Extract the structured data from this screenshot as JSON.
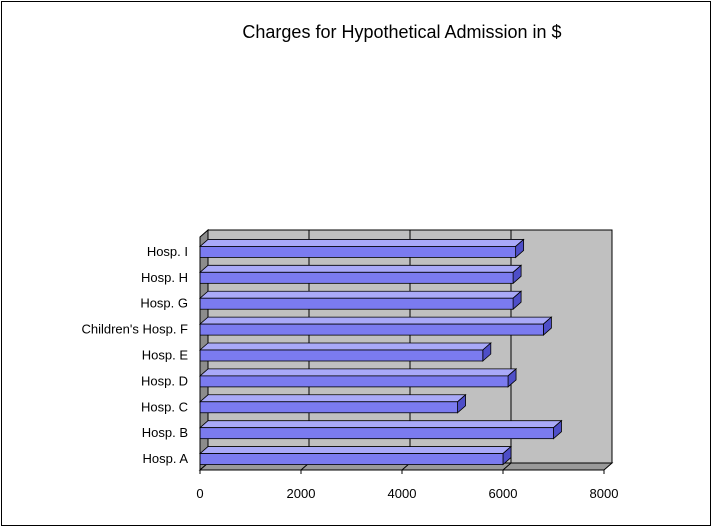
{
  "chart_data": {
    "type": "bar",
    "orientation": "horizontal",
    "title": "Charges for Hypothetical Admission in $",
    "xlabel": "",
    "ylabel": "",
    "categories": [
      "Hosp. A",
      "Hosp. B",
      "Hosp. C",
      "Hosp. D",
      "Hosp. E",
      "Children's Hosp. F",
      "Hosp. G",
      "Hosp. H",
      "Hosp. I"
    ],
    "values": [
      6000,
      7000,
      5100,
      6100,
      5600,
      6800,
      6200,
      6200,
      6250
    ],
    "xlim": [
      0,
      8000
    ],
    "xticks": [
      "0",
      "2000",
      "4000",
      "6000",
      "8000"
    ],
    "grid": true,
    "legend": "none",
    "colors": {
      "bar_front": "#7b7bf0",
      "bar_top": "#a9a9f8",
      "bar_side": "#4e4ec8",
      "plot_bg": "#c0c0c0",
      "floor": "#9a9a9a"
    }
  }
}
